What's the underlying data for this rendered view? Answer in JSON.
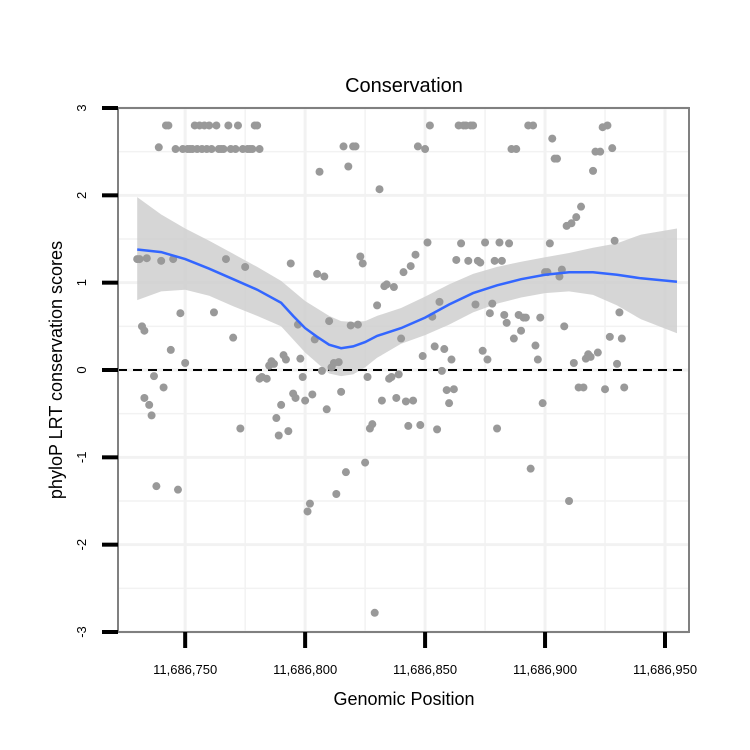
{
  "chart_data": {
    "type": "scatter",
    "title": "Conservation",
    "xlabel": "Genomic Position",
    "ylabel": "phyloP LRT conservation scores",
    "xlim": [
      11686722,
      11686960
    ],
    "ylim": [
      -3,
      3
    ],
    "x_ticks": [
      11686750,
      11686800,
      11686850,
      11686900,
      11686950
    ],
    "x_tick_labels": [
      "11,686,750",
      "11,686,800",
      "11,686,850",
      "11,686,900",
      "11,686,950"
    ],
    "y_ticks": [
      -3,
      -2,
      -1,
      0,
      1,
      2,
      3
    ],
    "y_tick_labels": [
      "-3",
      "-2",
      "-1",
      "0",
      "1",
      "2",
      "3"
    ],
    "grid": true,
    "reference_line": {
      "y": 0,
      "style": "dashed"
    },
    "colors": {
      "points": "#999999",
      "smooth_line": "#3366ff",
      "confidence_band": "#cccccc",
      "panel_border": "#808080",
      "grid": "#f2f2f2"
    },
    "points": [
      [
        11686730,
        1.27
      ],
      [
        11686731,
        1.27
      ],
      [
        11686732,
        0.5
      ],
      [
        11686733,
        -0.32
      ],
      [
        11686733,
        0.45
      ],
      [
        11686734,
        1.28
      ],
      [
        11686735,
        -0.4
      ],
      [
        11686736,
        -0.52
      ],
      [
        11686737,
        -0.07
      ],
      [
        11686738,
        -1.33
      ],
      [
        11686739,
        2.55
      ],
      [
        11686740,
        1.25
      ],
      [
        11686741,
        -0.2
      ],
      [
        11686742,
        2.8
      ],
      [
        11686743,
        2.8
      ],
      [
        11686744,
        0.23
      ],
      [
        11686745,
        1.27
      ],
      [
        11686746,
        2.53
      ],
      [
        11686747,
        -1.37
      ],
      [
        11686748,
        0.65
      ],
      [
        11686749,
        2.53
      ],
      [
        11686750,
        0.08
      ],
      [
        11686751,
        2.53
      ],
      [
        11686752,
        2.53
      ],
      [
        11686753,
        2.53
      ],
      [
        11686754,
        2.8
      ],
      [
        11686755,
        2.53
      ],
      [
        11686756,
        2.8
      ],
      [
        11686757,
        2.53
      ],
      [
        11686758,
        2.8
      ],
      [
        11686759,
        2.53
      ],
      [
        11686760,
        2.8
      ],
      [
        11686761,
        2.53
      ],
      [
        11686762,
        0.66
      ],
      [
        11686763,
        2.8
      ],
      [
        11686764,
        2.53
      ],
      [
        11686765,
        2.53
      ],
      [
        11686766,
        2.53
      ],
      [
        11686767,
        1.27
      ],
      [
        11686768,
        2.8
      ],
      [
        11686769,
        2.53
      ],
      [
        11686770,
        0.37
      ],
      [
        11686771,
        2.53
      ],
      [
        11686772,
        2.8
      ],
      [
        11686773,
        -0.67
      ],
      [
        11686774,
        2.53
      ],
      [
        11686775,
        1.18
      ],
      [
        11686776,
        2.53
      ],
      [
        11686777,
        2.53
      ],
      [
        11686778,
        2.53
      ],
      [
        11686779,
        2.8
      ],
      [
        11686780,
        2.8
      ],
      [
        11686781,
        2.53
      ],
      [
        11686781,
        -0.1
      ],
      [
        11686782,
        -0.08
      ],
      [
        11686784,
        -0.1
      ],
      [
        11686785,
        0.05
      ],
      [
        11686786,
        0.1
      ],
      [
        11686787,
        0.07
      ],
      [
        11686788,
        -0.55
      ],
      [
        11686789,
        -0.75
      ],
      [
        11686790,
        -0.4
      ],
      [
        11686791,
        0.17
      ],
      [
        11686792,
        0.12
      ],
      [
        11686793,
        -0.7
      ],
      [
        11686794,
        1.22
      ],
      [
        11686795,
        -0.27
      ],
      [
        11686796,
        -0.32
      ],
      [
        11686797,
        0.52
      ],
      [
        11686798,
        0.13
      ],
      [
        11686799,
        -0.08
      ],
      [
        11686800,
        -0.35
      ],
      [
        11686801,
        -1.62
      ],
      [
        11686802,
        -1.53
      ],
      [
        11686803,
        -0.28
      ],
      [
        11686804,
        0.35
      ],
      [
        11686805,
        1.1
      ],
      [
        11686806,
        2.27
      ],
      [
        11686807,
        -0.01
      ],
      [
        11686808,
        1.07
      ],
      [
        11686809,
        -0.45
      ],
      [
        11686810,
        0.56
      ],
      [
        11686811,
        0.03
      ],
      [
        11686812,
        0.08
      ],
      [
        11686813,
        -1.42
      ],
      [
        11686814,
        0.09
      ],
      [
        11686815,
        -0.25
      ],
      [
        11686816,
        2.56
      ],
      [
        11686817,
        -1.17
      ],
      [
        11686818,
        2.33
      ],
      [
        11686819,
        0.51
      ],
      [
        11686820,
        2.56
      ],
      [
        11686821,
        2.56
      ],
      [
        11686822,
        0.52
      ],
      [
        11686823,
        1.3
      ],
      [
        11686824,
        1.22
      ],
      [
        11686825,
        -1.06
      ],
      [
        11686826,
        -0.08
      ],
      [
        11686827,
        -0.67
      ],
      [
        11686828,
        -0.62
      ],
      [
        11686829,
        -2.78
      ],
      [
        11686830,
        0.74
      ],
      [
        11686831,
        2.07
      ],
      [
        11686832,
        -0.35
      ],
      [
        11686833,
        0.96
      ],
      [
        11686834,
        0.98
      ],
      [
        11686835,
        -0.1
      ],
      [
        11686836,
        -0.08
      ],
      [
        11686837,
        0.95
      ],
      [
        11686838,
        -0.32
      ],
      [
        11686839,
        -0.05
      ],
      [
        11686840,
        0.36
      ],
      [
        11686841,
        1.12
      ],
      [
        11686842,
        -0.36
      ],
      [
        11686843,
        -0.64
      ],
      [
        11686844,
        1.19
      ],
      [
        11686845,
        -0.35
      ],
      [
        11686846,
        1.32
      ],
      [
        11686847,
        2.56
      ],
      [
        11686848,
        -0.63
      ],
      [
        11686849,
        0.16
      ],
      [
        11686850,
        2.53
      ],
      [
        11686851,
        1.46
      ],
      [
        11686852,
        2.8
      ],
      [
        11686853,
        0.61
      ],
      [
        11686854,
        0.27
      ],
      [
        11686855,
        -0.68
      ],
      [
        11686856,
        0.78
      ],
      [
        11686857,
        -0.01
      ],
      [
        11686858,
        0.24
      ],
      [
        11686859,
        -0.23
      ],
      [
        11686860,
        -0.38
      ],
      [
        11686861,
        0.12
      ],
      [
        11686862,
        -0.22
      ],
      [
        11686863,
        1.26
      ],
      [
        11686864,
        2.8
      ],
      [
        11686865,
        1.45
      ],
      [
        11686866,
        2.8
      ],
      [
        11686867,
        2.8
      ],
      [
        11686868,
        1.25
      ],
      [
        11686869,
        2.8
      ],
      [
        11686870,
        2.8
      ],
      [
        11686871,
        0.75
      ],
      [
        11686872,
        1.25
      ],
      [
        11686873,
        1.23
      ],
      [
        11686874,
        0.22
      ],
      [
        11686875,
        1.46
      ],
      [
        11686876,
        0.12
      ],
      [
        11686877,
        0.65
      ],
      [
        11686878,
        0.76
      ],
      [
        11686879,
        1.25
      ],
      [
        11686880,
        -0.67
      ],
      [
        11686881,
        1.46
      ],
      [
        11686882,
        1.25
      ],
      [
        11686883,
        0.63
      ],
      [
        11686884,
        0.54
      ],
      [
        11686885,
        1.45
      ],
      [
        11686886,
        2.53
      ],
      [
        11686887,
        0.36
      ],
      [
        11686888,
        2.53
      ],
      [
        11686889,
        0.63
      ],
      [
        11686890,
        0.45
      ],
      [
        11686891,
        0.6
      ],
      [
        11686892,
        0.6
      ],
      [
        11686893,
        2.8
      ],
      [
        11686894,
        -1.13
      ],
      [
        11686895,
        2.8
      ],
      [
        11686896,
        0.28
      ],
      [
        11686897,
        0.12
      ],
      [
        11686898,
        0.6
      ],
      [
        11686899,
        -0.38
      ],
      [
        11686900,
        1.12
      ],
      [
        11686901,
        1.12
      ],
      [
        11686902,
        1.45
      ],
      [
        11686903,
        2.65
      ],
      [
        11686904,
        2.42
      ],
      [
        11686905,
        2.42
      ],
      [
        11686906,
        1.07
      ],
      [
        11686907,
        1.15
      ],
      [
        11686908,
        0.5
      ],
      [
        11686909,
        1.65
      ],
      [
        11686910,
        -1.5
      ],
      [
        11686911,
        1.68
      ],
      [
        11686912,
        0.08
      ],
      [
        11686913,
        1.75
      ],
      [
        11686914,
        -0.2
      ],
      [
        11686915,
        1.87
      ],
      [
        11686916,
        -0.2
      ],
      [
        11686917,
        0.13
      ],
      [
        11686918,
        0.18
      ],
      [
        11686919,
        0.15
      ],
      [
        11686920,
        2.28
      ],
      [
        11686921,
        2.5
      ],
      [
        11686922,
        0.2
      ],
      [
        11686923,
        2.5
      ],
      [
        11686924,
        2.78
      ],
      [
        11686925,
        -0.22
      ],
      [
        11686926,
        2.8
      ],
      [
        11686927,
        0.38
      ],
      [
        11686928,
        2.54
      ],
      [
        11686929,
        1.48
      ],
      [
        11686930,
        0.07
      ],
      [
        11686931,
        0.66
      ],
      [
        11686932,
        0.36
      ],
      [
        11686933,
        -0.2
      ]
    ],
    "smooth": [
      [
        11686730,
        1.38
      ],
      [
        11686740,
        1.35
      ],
      [
        11686750,
        1.27
      ],
      [
        11686760,
        1.16
      ],
      [
        11686770,
        1.04
      ],
      [
        11686780,
        0.92
      ],
      [
        11686790,
        0.77
      ],
      [
        11686795,
        0.62
      ],
      [
        11686800,
        0.48
      ],
      [
        11686805,
        0.38
      ],
      [
        11686810,
        0.29
      ],
      [
        11686815,
        0.25
      ],
      [
        11686820,
        0.27
      ],
      [
        11686825,
        0.32
      ],
      [
        11686830,
        0.39
      ],
      [
        11686840,
        0.48
      ],
      [
        11686850,
        0.6
      ],
      [
        11686860,
        0.75
      ],
      [
        11686870,
        0.88
      ],
      [
        11686880,
        0.97
      ],
      [
        11686890,
        1.04
      ],
      [
        11686900,
        1.09
      ],
      [
        11686910,
        1.12
      ],
      [
        11686920,
        1.12
      ],
      [
        11686930,
        1.09
      ],
      [
        11686940,
        1.05
      ],
      [
        11686955,
        1.01
      ]
    ],
    "band_upper": [
      [
        11686730,
        1.98
      ],
      [
        11686740,
        1.78
      ],
      [
        11686750,
        1.62
      ],
      [
        11686760,
        1.48
      ],
      [
        11686770,
        1.33
      ],
      [
        11686780,
        1.18
      ],
      [
        11686790,
        1.02
      ],
      [
        11686800,
        0.79
      ],
      [
        11686810,
        0.62
      ],
      [
        11686815,
        0.56
      ],
      [
        11686820,
        0.55
      ],
      [
        11686825,
        0.56
      ],
      [
        11686830,
        0.62
      ],
      [
        11686840,
        0.71
      ],
      [
        11686850,
        0.84
      ],
      [
        11686860,
        0.98
      ],
      [
        11686870,
        1.1
      ],
      [
        11686880,
        1.18
      ],
      [
        11686890,
        1.24
      ],
      [
        11686900,
        1.29
      ],
      [
        11686910,
        1.34
      ],
      [
        11686920,
        1.4
      ],
      [
        11686930,
        1.45
      ],
      [
        11686940,
        1.55
      ],
      [
        11686955,
        1.62
      ]
    ],
    "band_lower": [
      [
        11686730,
        0.8
      ],
      [
        11686740,
        0.9
      ],
      [
        11686750,
        0.92
      ],
      [
        11686760,
        0.85
      ],
      [
        11686770,
        0.73
      ],
      [
        11686780,
        0.62
      ],
      [
        11686790,
        0.5
      ],
      [
        11686800,
        0.2
      ],
      [
        11686810,
        -0.04
      ],
      [
        11686815,
        -0.07
      ],
      [
        11686820,
        -0.05
      ],
      [
        11686825,
        0.03
      ],
      [
        11686830,
        0.14
      ],
      [
        11686840,
        0.3
      ],
      [
        11686850,
        0.4
      ],
      [
        11686860,
        0.52
      ],
      [
        11686870,
        0.66
      ],
      [
        11686880,
        0.76
      ],
      [
        11686890,
        0.83
      ],
      [
        11686900,
        0.88
      ],
      [
        11686910,
        0.9
      ],
      [
        11686920,
        0.86
      ],
      [
        11686930,
        0.74
      ],
      [
        11686940,
        0.58
      ],
      [
        11686955,
        0.42
      ]
    ]
  }
}
